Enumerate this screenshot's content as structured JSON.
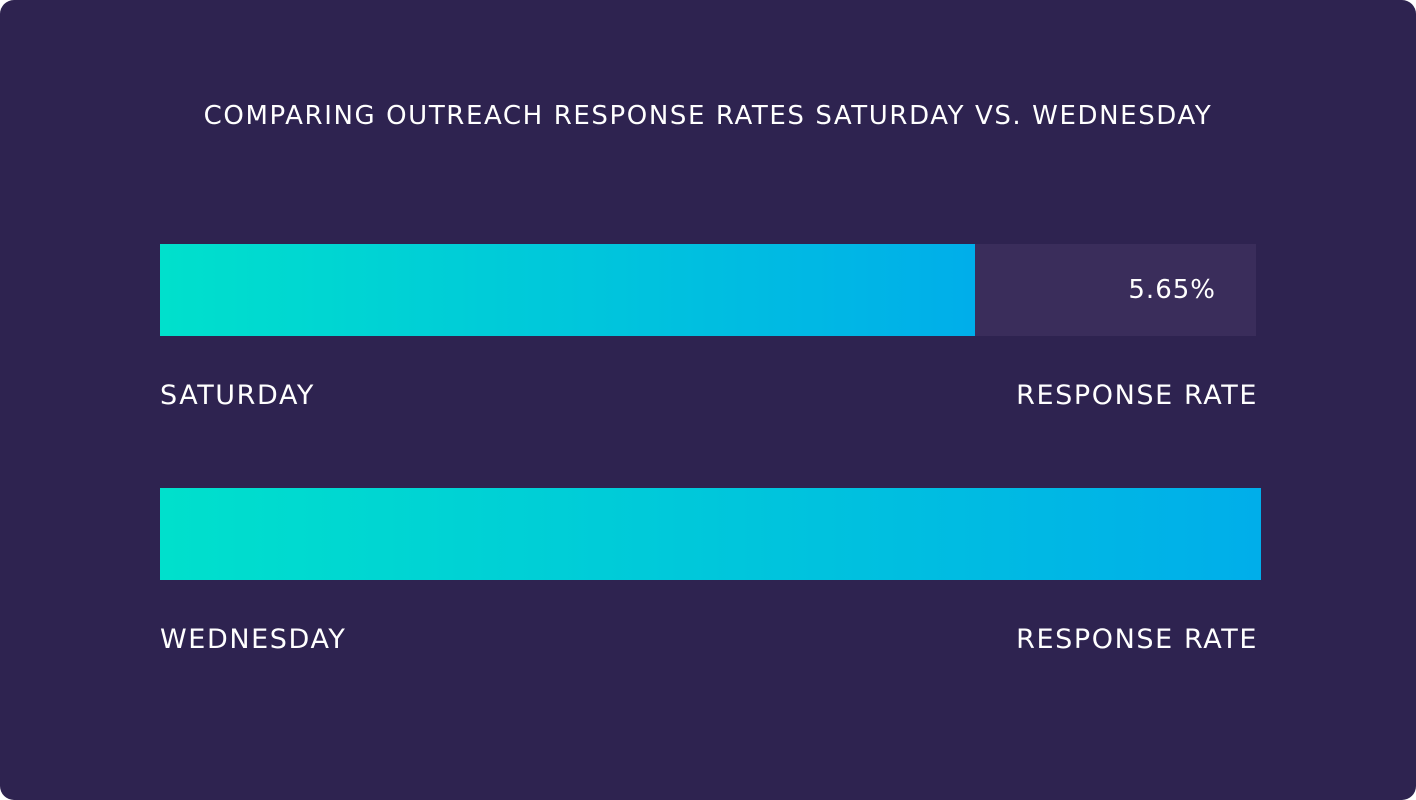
{
  "colors": {
    "background": "#2e2350",
    "track": "#3a2d5b",
    "gradient_start": "#00e0cc",
    "gradient_end": "#00aeea"
  },
  "chart_data": {
    "type": "bar",
    "orientation": "horizontal",
    "title": "COMPARING OUTREACH RESPONSE RATES SATURDAY VS. WEDNESDAY",
    "categories": [
      "SATURDAY",
      "WEDNESDAY"
    ],
    "values": [
      5.65,
      7.6
    ],
    "value_labels": [
      "5.65%",
      ""
    ],
    "metric_labels": [
      "RESPONSE RATE",
      "RESPONSE RATE"
    ],
    "xlim": [
      0,
      7.6
    ],
    "grid": false,
    "legend": "none"
  }
}
